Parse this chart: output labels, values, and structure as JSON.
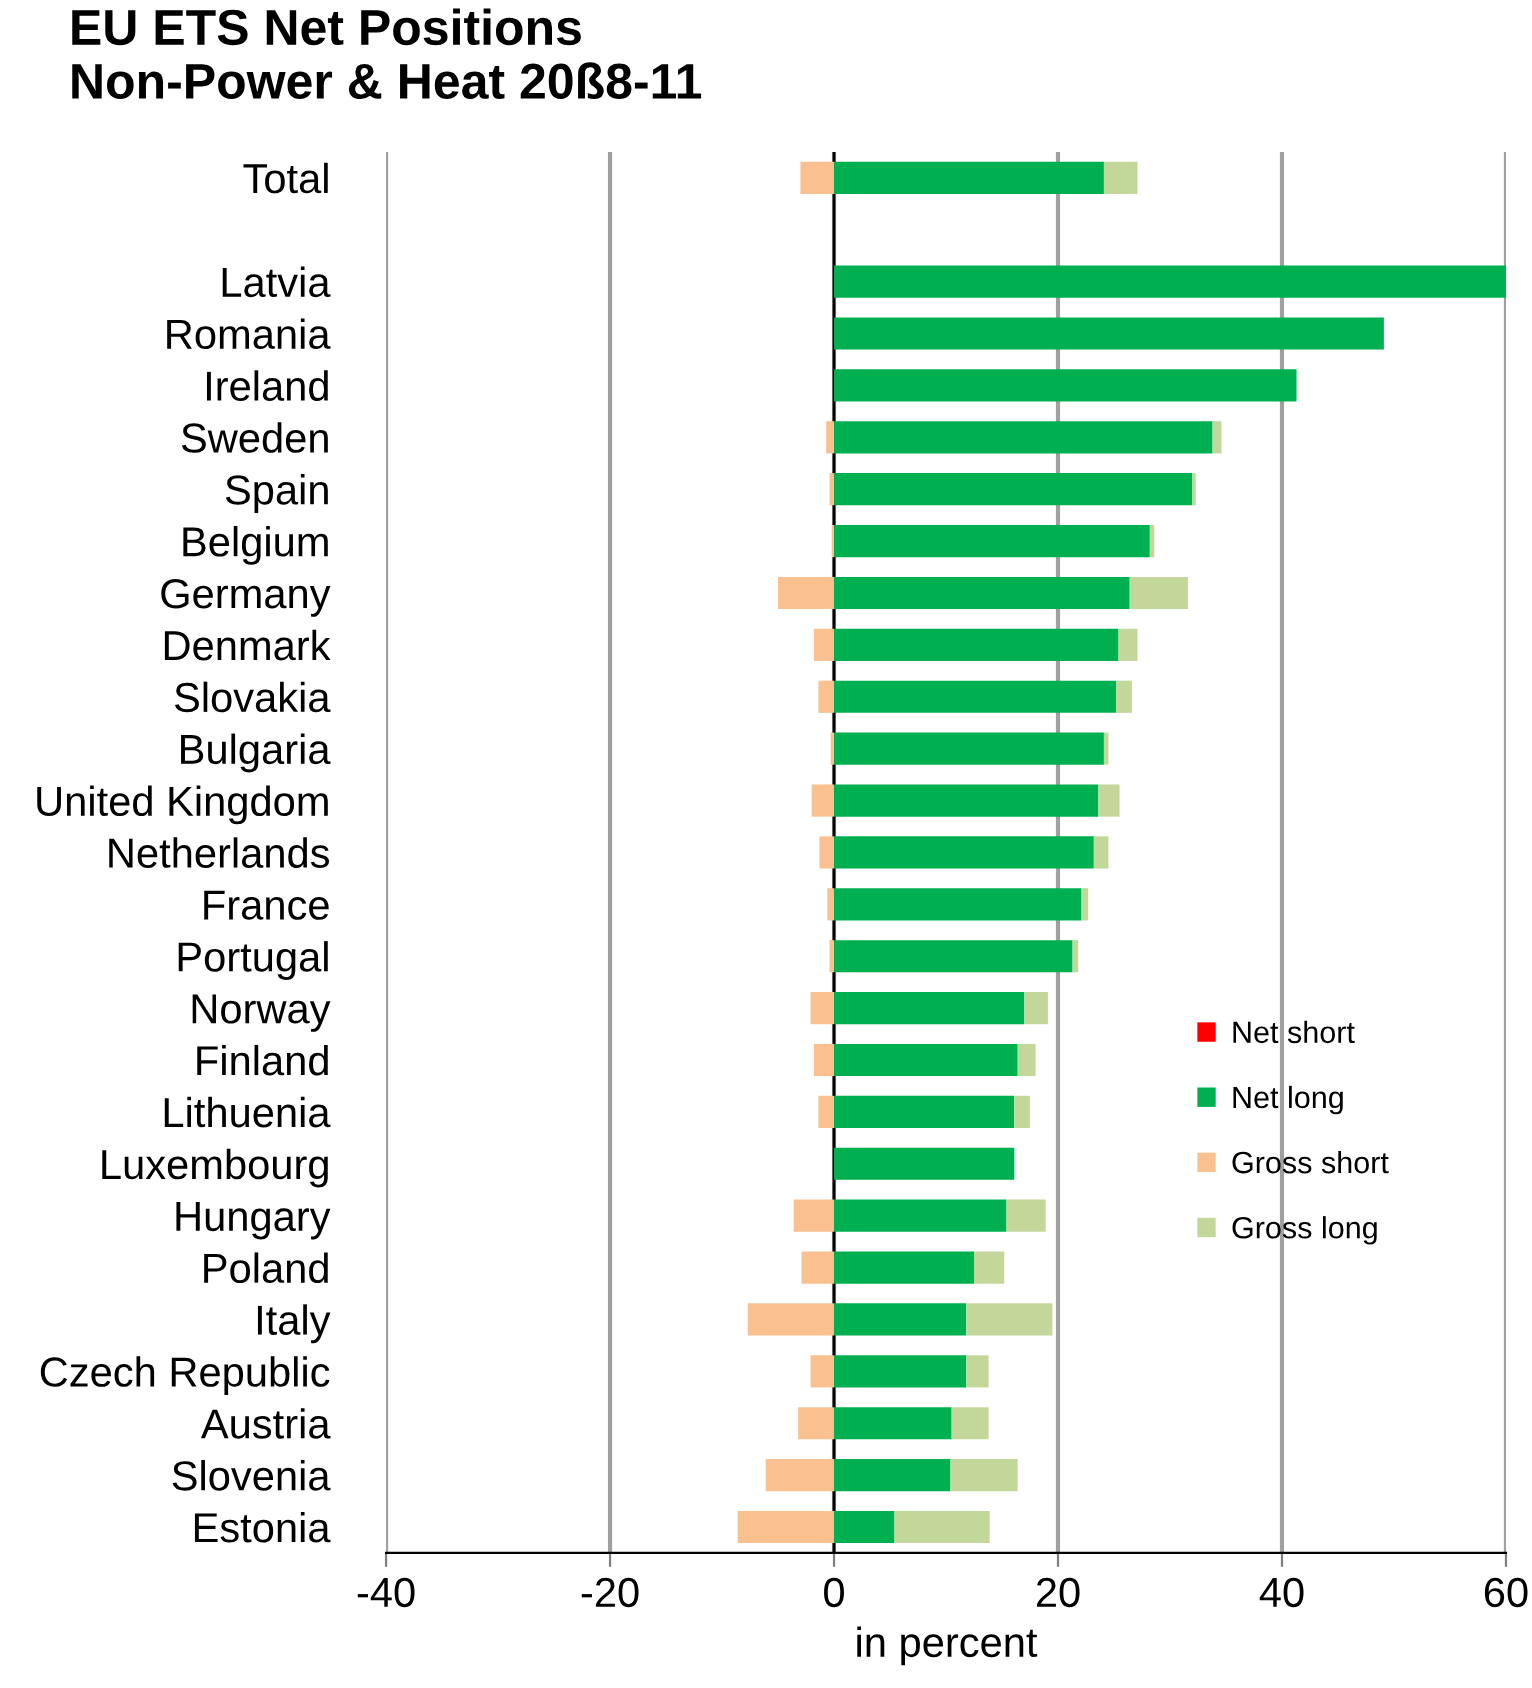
{
  "chart_data": {
    "type": "bar",
    "orientation": "horizontal",
    "stacked": true,
    "title": "EU ETS Net Positions\nNon-Power & Heat 20ß8-11",
    "xlabel": "in percent",
    "categories": [
      "Total",
      null,
      "Latvia",
      "Romania",
      "Ireland",
      "Sweden",
      "Spain",
      "Belgium",
      "Germany",
      "Denmark",
      "Slovakia",
      "Bulgaria",
      "United Kingdom",
      "Netherlands",
      "France",
      "Portugal",
      "Norway",
      "Finland",
      "Lithuenia",
      "Luxembourg",
      "Hungary",
      "Poland",
      "Italy",
      "Czech Republic",
      "Austria",
      "Slovenia",
      "Estonia"
    ],
    "series": [
      {
        "name": "Net short",
        "color": "#ff0000",
        "values": [
          null,
          null,
          null,
          null,
          null,
          null,
          null,
          null,
          null,
          null,
          null,
          null,
          null,
          null,
          null,
          null,
          null,
          null,
          null,
          null,
          null,
          null,
          null,
          null,
          null,
          null,
          null
        ]
      },
      {
        "name": "Net long",
        "color": "#00b050",
        "values": [
          24.1,
          null,
          60,
          49.1,
          41.3,
          33.8,
          32.0,
          28.2,
          26.4,
          25.4,
          25.2,
          24.1,
          23.6,
          23.2,
          22.1,
          21.3,
          17.0,
          16.4,
          16.1,
          16.1,
          15.4,
          12.5,
          11.8,
          11.8,
          10.5,
          10.4,
          5.4
        ]
      },
      {
        "name": "Gross short",
        "color": "#fac090",
        "values": [
          -3.0,
          null,
          null,
          null,
          null,
          -0.7,
          -0.4,
          -0.2,
          -5.0,
          -1.8,
          -1.4,
          -0.3,
          -2.0,
          -1.3,
          -0.6,
          -0.4,
          -2.1,
          -1.8,
          -1.4,
          null,
          -3.6,
          -2.9,
          -7.7,
          -2.1,
          -3.2,
          -6.1,
          -8.6
        ]
      },
      {
        "name": "Gross long",
        "color": "#c4d79b",
        "values": [
          3.0,
          null,
          null,
          null,
          null,
          0.8,
          0.3,
          0.4,
          5.2,
          1.7,
          1.4,
          0.4,
          1.9,
          1.3,
          0.6,
          0.5,
          2.1,
          1.6,
          1.4,
          null,
          3.5,
          2.7,
          7.7,
          2.0,
          3.3,
          6.0,
          8.5
        ]
      }
    ],
    "xlim": [
      -40,
      60
    ],
    "xticks": [
      -40,
      -20,
      0,
      20,
      40,
      60
    ],
    "grid": "x",
    "legend": "right"
  }
}
